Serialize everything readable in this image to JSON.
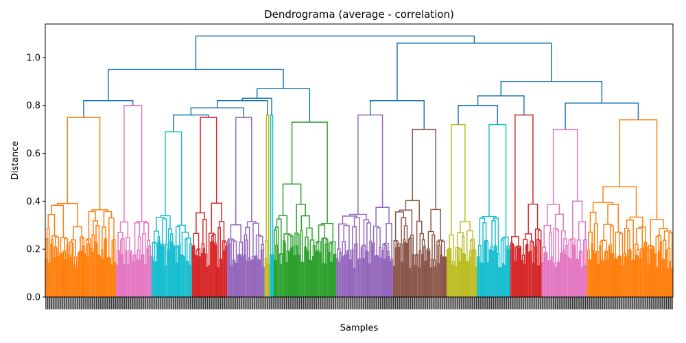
{
  "chart_data": {
    "type": "dendrogram",
    "title": "Dendrograma (average - correlation)",
    "xlabel": "Samples",
    "ylabel": "Distance",
    "ylim": [
      0.0,
      1.14
    ],
    "yticks": [
      0.0,
      0.2,
      0.4,
      0.6,
      0.8,
      1.0
    ],
    "ytick_labels": [
      "0.0",
      "0.2",
      "0.4",
      "0.6",
      "0.8",
      "1.0"
    ],
    "x_tick_labels_note": "",
    "link_color": "#1f77b4",
    "clusters": [
      {
        "color": "#ff7f0e",
        "height": 0.75,
        "samples": 70
      },
      {
        "color": "#e377c2",
        "height": 0.8,
        "samples": 35
      },
      {
        "color": "#17becf",
        "height": 0.69,
        "samples": 40
      },
      {
        "color": "#d62728",
        "height": 0.75,
        "samples": 35
      },
      {
        "color": "#9467bd",
        "height": 0.75,
        "samples": 37
      },
      {
        "color": "#bcbd22",
        "height": 0.76,
        "samples": 5
      },
      {
        "color": "#17becf",
        "height": 0.76,
        "samples": 4
      },
      {
        "color": "#2ca02c",
        "height": 0.73,
        "samples": 62
      },
      {
        "color": "#9467bd",
        "height": 0.76,
        "samples": 56
      },
      {
        "color": "#8c564b",
        "height": 0.7,
        "samples": 53
      },
      {
        "color": "#bcbd22",
        "height": 0.72,
        "samples": 30
      },
      {
        "color": "#17becf",
        "height": 0.72,
        "samples": 33
      },
      {
        "color": "#d62728",
        "height": 0.76,
        "samples": 31
      },
      {
        "color": "#e377c2",
        "height": 0.7,
        "samples": 45
      },
      {
        "color": "#ff7f0e",
        "height": 0.74,
        "samples": 85
      }
    ],
    "merges": [
      {
        "left": 0,
        "right": 1,
        "height": 0.82
      },
      {
        "left": 2,
        "right": 3,
        "height": 0.76
      },
      {
        "left": 16,
        "right": 4,
        "height": 0.79
      },
      {
        "left": 17,
        "right": 5,
        "height": 0.82
      },
      {
        "left": 18,
        "right": 6,
        "height": 0.83
      },
      {
        "left": 19,
        "right": 7,
        "height": 0.87
      },
      {
        "left": 20,
        "right": 15,
        "height": 0.95
      },
      {
        "left": 8,
        "right": 9,
        "height": 0.82
      },
      {
        "left": 10,
        "right": 11,
        "height": 0.8
      },
      {
        "left": 23,
        "right": 12,
        "height": 0.84
      },
      {
        "left": 13,
        "right": 14,
        "height": 0.81
      },
      {
        "left": 25,
        "right": 24,
        "height": 0.9
      },
      {
        "left": 22,
        "right": 26,
        "height": 1.06
      },
      {
        "left": 21,
        "right": 27,
        "height": 1.09
      }
    ]
  }
}
